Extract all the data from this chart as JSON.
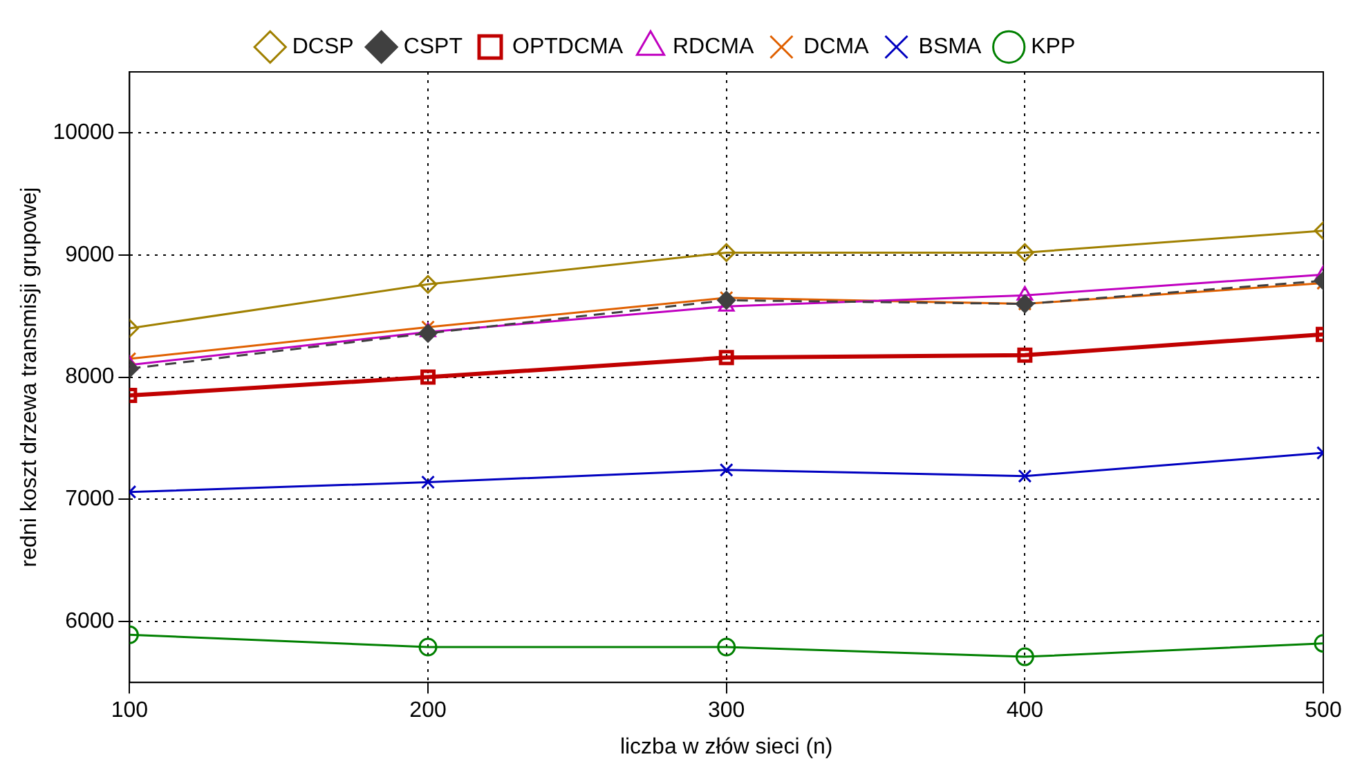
{
  "chart_data": {
    "type": "line",
    "xlabel": "liczba w złów sieci (n)",
    "ylabel": "redni koszt drzewa transmisji grupowej",
    "x": [
      100,
      200,
      300,
      400,
      500
    ],
    "xlim": [
      100,
      500
    ],
    "xticks": [
      100,
      200,
      300,
      400,
      500
    ],
    "ylim": [
      5500,
      10500
    ],
    "yticks": [
      6000,
      7000,
      8000,
      9000,
      10000
    ],
    "grid": true,
    "legend": "top",
    "series": [
      {
        "name": "KPP",
        "color": "#008000",
        "marker": "circle",
        "values": [
          5890,
          5790,
          5790,
          5710,
          5820
        ]
      },
      {
        "name": "BSMA",
        "color": "#0000c0",
        "marker": "cross",
        "values": [
          7060,
          7140,
          7240,
          7190,
          7380
        ]
      },
      {
        "name": "DCMA",
        "color": "#e06000",
        "marker": "cross",
        "values": [
          8150,
          8410,
          8650,
          8600,
          8770
        ]
      },
      {
        "name": "RDCMA",
        "color": "#c000c0",
        "marker": "triangle",
        "values": [
          8100,
          8370,
          8580,
          8670,
          8840
        ]
      },
      {
        "name": "OPTDCMA",
        "color": "#c00000",
        "marker": "square",
        "values": [
          7850,
          8000,
          8160,
          8180,
          8350
        ]
      },
      {
        "name": "CSPT",
        "color": "#404040",
        "marker": "diamond",
        "line_style": "dashed",
        "values": [
          8070,
          8360,
          8630,
          8600,
          8790
        ]
      },
      {
        "name": "DCSP",
        "color": "#a08000",
        "marker": "diamond",
        "values": [
          8400,
          8760,
          9020,
          9020,
          9200
        ]
      }
    ]
  }
}
